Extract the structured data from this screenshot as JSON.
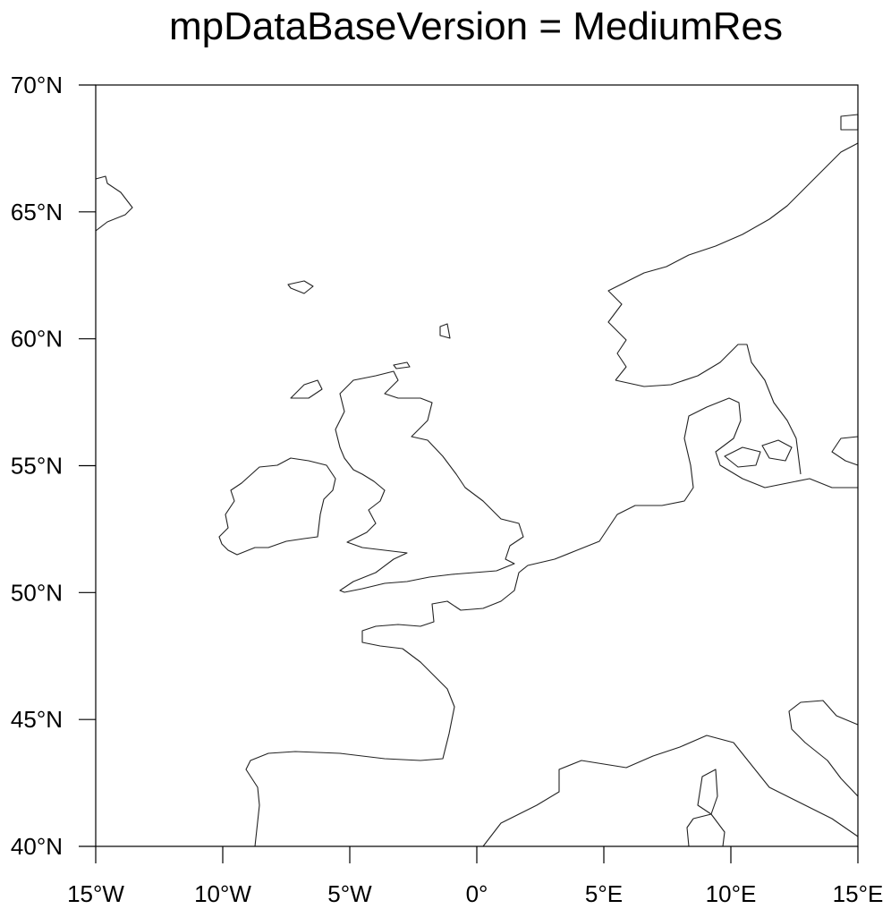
{
  "title": "mpDataBaseVersion = MediumRes",
  "map": {
    "lon_range": [
      -15,
      15
    ],
    "lat_range": [
      40,
      70
    ],
    "lon_ticks": [
      {
        "value": -15,
        "label": "15°W"
      },
      {
        "value": -10,
        "label": "10°W"
      },
      {
        "value": -5,
        "label": "5°W"
      },
      {
        "value": 0,
        "label": "0°"
      },
      {
        "value": 5,
        "label": "5°E"
      },
      {
        "value": 10,
        "label": "10°E"
      },
      {
        "value": 15,
        "label": "15°E"
      }
    ],
    "lat_ticks": [
      {
        "value": 40,
        "label": "40°N"
      },
      {
        "value": 45,
        "label": "45°N"
      },
      {
        "value": 50,
        "label": "50°N"
      },
      {
        "value": 55,
        "label": "55°N"
      },
      {
        "value": 60,
        "label": "60°N"
      },
      {
        "value": 65,
        "label": "65°N"
      },
      {
        "value": 70,
        "label": "70°N"
      }
    ]
  }
}
